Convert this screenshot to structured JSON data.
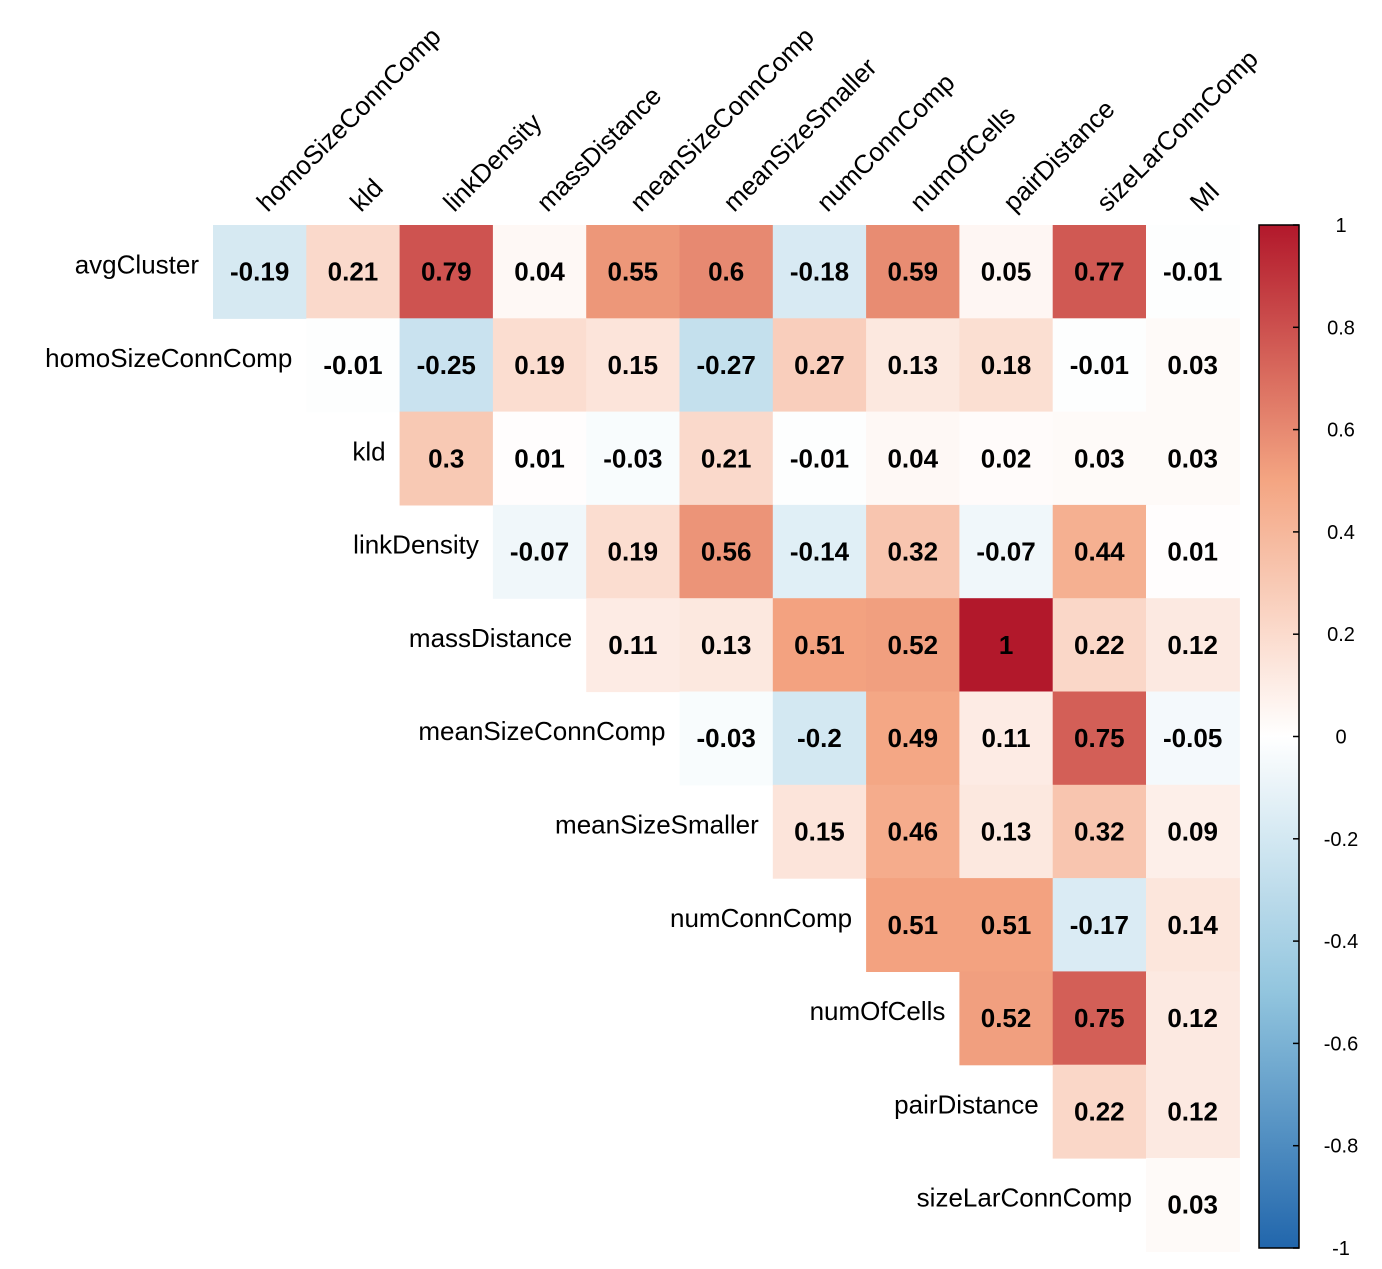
{
  "chart_data": {
    "type": "heatmap",
    "subtype": "correlation-upper-triangle",
    "title": "",
    "columns": [
      "homoSizeConnComp",
      "kld",
      "linkDensity",
      "massDistance",
      "meanSizeConnComp",
      "meanSizeSmaller",
      "numConnComp",
      "numOfCells",
      "pairDistance",
      "sizeLarConnComp",
      "MI"
    ],
    "rows": [
      {
        "label": "avgCluster",
        "start_col": 0,
        "values": [
          -0.19,
          0.21,
          0.79,
          0.04,
          0.55,
          0.6,
          -0.18,
          0.59,
          0.05,
          0.77,
          -0.01
        ]
      },
      {
        "label": "homoSizeConnComp",
        "start_col": 1,
        "values": [
          -0.01,
          -0.25,
          0.19,
          0.15,
          -0.27,
          0.27,
          0.13,
          0.18,
          -0.01,
          0.03
        ]
      },
      {
        "label": "kld",
        "start_col": 2,
        "values": [
          0.3,
          0.01,
          -0.03,
          0.21,
          -0.01,
          0.04,
          0.02,
          0.03,
          0.03
        ]
      },
      {
        "label": "linkDensity",
        "start_col": 3,
        "values": [
          -0.07,
          0.19,
          0.56,
          -0.14,
          0.32,
          -0.07,
          0.44,
          0.01
        ]
      },
      {
        "label": "massDistance",
        "start_col": 4,
        "values": [
          0.11,
          0.13,
          0.51,
          0.52,
          1,
          0.22,
          0.12
        ]
      },
      {
        "label": "meanSizeConnComp",
        "start_col": 5,
        "values": [
          -0.03,
          -0.2,
          0.49,
          0.11,
          0.75,
          -0.05
        ]
      },
      {
        "label": "meanSizeSmaller",
        "start_col": 6,
        "values": [
          0.15,
          0.46,
          0.13,
          0.32,
          0.09
        ]
      },
      {
        "label": "numConnComp",
        "start_col": 7,
        "values": [
          0.51,
          0.51,
          -0.17,
          0.14
        ]
      },
      {
        "label": "numOfCells",
        "start_col": 8,
        "values": [
          0.52,
          0.75,
          0.12
        ]
      },
      {
        "label": "pairDistance",
        "start_col": 9,
        "values": [
          0.22,
          0.12
        ]
      },
      {
        "label": "sizeLarConnComp",
        "start_col": 10,
        "values": [
          0.03
        ]
      }
    ],
    "colorbar": {
      "range": [
        -1,
        1
      ],
      "ticks": [
        "1",
        "0.8",
        "0.6",
        "0.4",
        "0.2",
        "0",
        "-0.2",
        "-0.4",
        "-0.6",
        "-0.8",
        "-1"
      ],
      "colors": {
        "low": "#2166AC",
        "mid_low": "#92C5DE",
        "mid": "#FFFFFF",
        "mid_high": "#F4A582",
        "high": "#B2182B"
      }
    }
  }
}
